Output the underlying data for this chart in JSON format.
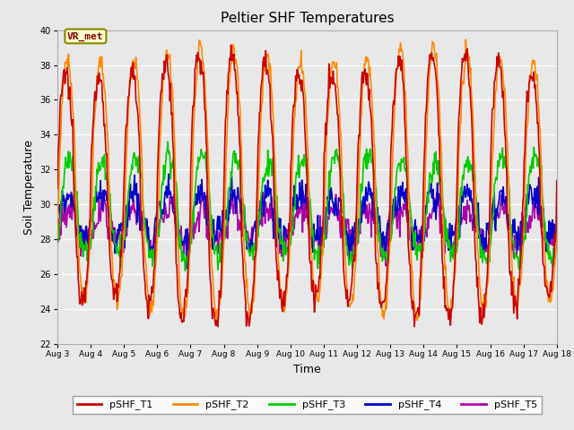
{
  "title": "Peltier SHF Temperatures",
  "xlabel": "Time",
  "ylabel": "Soil Temperature",
  "ylim": [
    22,
    40
  ],
  "background_color": "#e8e8e8",
  "series": {
    "pSHF_T1": {
      "color": "#cc0000",
      "lw": 1.2
    },
    "pSHF_T2": {
      "color": "#ff8800",
      "lw": 1.2
    },
    "pSHF_T3": {
      "color": "#00cc00",
      "lw": 1.2
    },
    "pSHF_T4": {
      "color": "#0000cc",
      "lw": 1.2
    },
    "pSHF_T5": {
      "color": "#aa00aa",
      "lw": 1.2
    }
  },
  "annotation": {
    "text": "VR_met",
    "fontsize": 8,
    "text_color": "#8b0000",
    "box_color": "#ffffcc",
    "box_edge_color": "#888800"
  },
  "xtick_labels": [
    "Aug 3",
    "Aug 4",
    "Aug 5",
    "Aug 6",
    "Aug 7",
    "Aug 8",
    "Aug 9",
    "Aug 10",
    "Aug 11",
    "Aug 12",
    "Aug 13",
    "Aug 14",
    "Aug 15",
    "Aug 16",
    "Aug 17",
    "Aug 18"
  ],
  "ytick_labels": [
    22,
    24,
    26,
    28,
    30,
    32,
    34,
    36,
    38,
    40
  ],
  "grid_color": "#ffffff",
  "grid_lw": 1.0,
  "legend_fontsize": 8,
  "title_fontsize": 11
}
